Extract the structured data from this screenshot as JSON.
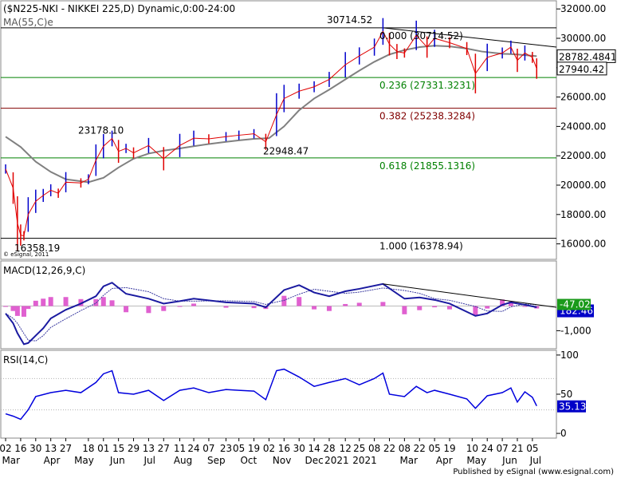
{
  "chart_data": {
    "type": "candlestick",
    "title": "($N225-NKI - NIKKEI 225,D) Dynamic,0:00-24:00",
    "ma_label": "MA(55,C)",
    "ma_label_suffix": "e",
    "watermark": "© eSignal, 2011",
    "price_axis": {
      "ylim": [
        15000,
        32500
      ],
      "ticks": [
        16000,
        18000,
        20000,
        22000,
        24000,
        26000,
        28000,
        30000,
        32000
      ],
      "tick_labels": [
        "16000.00",
        "18000.00",
        "20000.00",
        "22000.00",
        "24000.00",
        "26000.00",
        "28000.00",
        "30000.00",
        "32000.00"
      ],
      "last_price": 27940.42,
      "last_price_label": "27940.42",
      "ma_value": 28782.4841,
      "ma_value_label": "28782.4841"
    },
    "fib_levels": [
      {
        "ratio_label": "0.000 (30714.52)",
        "value": 30714.52,
        "color": "#000000"
      },
      {
        "ratio_label": "0.236 (27331.3231)",
        "value": 27331.3231,
        "color": "#008000"
      },
      {
        "ratio_label": "0.382 (25238.3284)",
        "value": 25238.3284,
        "color": "#800000"
      },
      {
        "ratio_label": "0.618 (21855.1316)",
        "value": 21855.1316,
        "color": "#008000"
      },
      {
        "ratio_label": "1.000 (16378.94)",
        "value": 16378.94,
        "color": "#000000"
      }
    ],
    "annotations": [
      {
        "text": "30714.52",
        "value": 30714.52
      },
      {
        "text": "23178.10",
        "value": 23178.1
      },
      {
        "text": "22948.47",
        "value": 22948.47
      },
      {
        "text": "16358.19",
        "value": 16358.19
      }
    ],
    "price_series": [
      {
        "date": "2020-03-02",
        "close": 21100
      },
      {
        "date": "2020-03-09",
        "close": 19800
      },
      {
        "date": "2020-03-13",
        "close": 17400
      },
      {
        "date": "2020-03-16",
        "close": 16600
      },
      {
        "date": "2020-03-19",
        "close": 16550
      },
      {
        "date": "2020-03-23",
        "close": 18000
      },
      {
        "date": "2020-03-30",
        "close": 18900
      },
      {
        "date": "2020-04-06",
        "close": 19300
      },
      {
        "date": "2020-04-13",
        "close": 19650
      },
      {
        "date": "2020-04-20",
        "close": 19450
      },
      {
        "date": "2020-04-27",
        "close": 20200
      },
      {
        "date": "2020-05-11",
        "close": 20150
      },
      {
        "date": "2020-05-18",
        "close": 20400
      },
      {
        "date": "2020-05-25",
        "close": 21700
      },
      {
        "date": "2020-06-01",
        "close": 22650
      },
      {
        "date": "2020-06-09",
        "close": 23178
      },
      {
        "date": "2020-06-15",
        "close": 22300
      },
      {
        "date": "2020-06-22",
        "close": 22500
      },
      {
        "date": "2020-06-29",
        "close": 22200
      },
      {
        "date": "2020-07-13",
        "close": 22700
      },
      {
        "date": "2020-07-27",
        "close": 21800
      },
      {
        "date": "2020-08-11",
        "close": 22700
      },
      {
        "date": "2020-08-24",
        "close": 23200
      },
      {
        "date": "2020-09-07",
        "close": 23150
      },
      {
        "date": "2020-09-23",
        "close": 23300
      },
      {
        "date": "2020-10-05",
        "close": 23400
      },
      {
        "date": "2020-10-19",
        "close": 23500
      },
      {
        "date": "2020-10-30",
        "close": 22948
      },
      {
        "date": "2020-11-09",
        "close": 24800
      },
      {
        "date": "2020-11-16",
        "close": 25900
      },
      {
        "date": "2020-11-30",
        "close": 26400
      },
      {
        "date": "2020-12-14",
        "close": 26700
      },
      {
        "date": "2020-12-28",
        "close": 27200
      },
      {
        "date": "2021-01-12",
        "close": 28200
      },
      {
        "date": "2021-01-25",
        "close": 28800
      },
      {
        "date": "2021-02-08",
        "close": 29400
      },
      {
        "date": "2021-02-16",
        "close": 30467
      },
      {
        "date": "2021-02-22",
        "close": 29600
      },
      {
        "date": "2021-03-01",
        "close": 29100
      },
      {
        "date": "2021-03-08",
        "close": 29000
      },
      {
        "date": "2021-03-19",
        "close": 30200
      },
      {
        "date": "2021-03-29",
        "close": 29400
      },
      {
        "date": "2021-04-05",
        "close": 30000
      },
      {
        "date": "2021-04-19",
        "close": 29700
      },
      {
        "date": "2021-05-05",
        "close": 29300
      },
      {
        "date": "2021-05-13",
        "close": 27600
      },
      {
        "date": "2021-05-24",
        "close": 28700
      },
      {
        "date": "2021-06-07",
        "close": 29000
      },
      {
        "date": "2021-06-15",
        "close": 29400
      },
      {
        "date": "2021-06-21",
        "close": 28500
      },
      {
        "date": "2021-06-28",
        "close": 29000
      },
      {
        "date": "2021-07-05",
        "close": 28700
      },
      {
        "date": "2021-07-09",
        "close": 27940
      }
    ],
    "ma_series": [
      {
        "date": "2020-03-02",
        "value": 23300
      },
      {
        "date": "2020-03-16",
        "value": 22600
      },
      {
        "date": "2020-03-30",
        "value": 21600
      },
      {
        "date": "2020-04-13",
        "value": 20900
      },
      {
        "date": "2020-04-27",
        "value": 20400
      },
      {
        "date": "2020-05-18",
        "value": 20200
      },
      {
        "date": "2020-06-01",
        "value": 20500
      },
      {
        "date": "2020-06-15",
        "value": 21200
      },
      {
        "date": "2020-06-29",
        "value": 21800
      },
      {
        "date": "2020-07-13",
        "value": 22150
      },
      {
        "date": "2020-07-27",
        "value": 22350
      },
      {
        "date": "2020-08-11",
        "value": 22500
      },
      {
        "date": "2020-08-24",
        "value": 22650
      },
      {
        "date": "2020-09-07",
        "value": 22800
      },
      {
        "date": "2020-09-23",
        "value": 22950
      },
      {
        "date": "2020-10-05",
        "value": 23050
      },
      {
        "date": "2020-10-19",
        "value": 23150
      },
      {
        "date": "2020-11-02",
        "value": 23200
      },
      {
        "date": "2020-11-16",
        "value": 24000
      },
      {
        "date": "2020-11-30",
        "value": 25100
      },
      {
        "date": "2020-12-14",
        "value": 25900
      },
      {
        "date": "2020-12-28",
        "value": 26500
      },
      {
        "date": "2021-01-12",
        "value": 27200
      },
      {
        "date": "2021-01-25",
        "value": 27800
      },
      {
        "date": "2021-02-08",
        "value": 28400
      },
      {
        "date": "2021-02-22",
        "value": 28900
      },
      {
        "date": "2021-03-08",
        "value": 29200
      },
      {
        "date": "2021-03-22",
        "value": 29400
      },
      {
        "date": "2021-04-05",
        "value": 29500
      },
      {
        "date": "2021-04-19",
        "value": 29450
      },
      {
        "date": "2021-05-05",
        "value": 29300
      },
      {
        "date": "2021-05-19",
        "value": 29100
      },
      {
        "date": "2021-06-07",
        "value": 28950
      },
      {
        "date": "2021-06-21",
        "value": 28900
      },
      {
        "date": "2021-07-09",
        "value": 28782
      }
    ],
    "price_trendline": {
      "from": {
        "date": "2021-02-16",
        "value": 30714
      },
      "to": {
        "date": "2021-07-09",
        "value": 29400
      }
    },
    "macd": {
      "label": "MACD(12,26,9,C)",
      "ylim": [
        -1700,
        1800
      ],
      "ticks": [
        -1000
      ],
      "tick_labels": [
        "-1,000"
      ],
      "value_label": "-47.02",
      "signal_label": "182.46",
      "macd_series": [
        {
          "date": "2020-03-02",
          "value": -300
        },
        {
          "date": "2020-03-09",
          "value": -700
        },
        {
          "date": "2020-03-13",
          "value": -1100
        },
        {
          "date": "2020-03-19",
          "value": -1550
        },
        {
          "date": "2020-03-23",
          "value": -1500
        },
        {
          "date": "2020-03-30",
          "value": -1200
        },
        {
          "date": "2020-04-06",
          "value": -900
        },
        {
          "date": "2020-04-13",
          "value": -500
        },
        {
          "date": "2020-04-27",
          "value": -150
        },
        {
          "date": "2020-05-11",
          "value": 100
        },
        {
          "date": "2020-05-25",
          "value": 400
        },
        {
          "date": "2020-06-01",
          "value": 800
        },
        {
          "date": "2020-06-09",
          "value": 950
        },
        {
          "date": "2020-06-22",
          "value": 500
        },
        {
          "date": "2020-07-13",
          "value": 300
        },
        {
          "date": "2020-07-27",
          "value": 100
        },
        {
          "date": "2020-08-11",
          "value": 200
        },
        {
          "date": "2020-08-24",
          "value": 300
        },
        {
          "date": "2020-09-23",
          "value": 150
        },
        {
          "date": "2020-10-19",
          "value": 100
        },
        {
          "date": "2020-10-30",
          "value": -50
        },
        {
          "date": "2020-11-16",
          "value": 650
        },
        {
          "date": "2020-11-30",
          "value": 850
        },
        {
          "date": "2020-12-14",
          "value": 550
        },
        {
          "date": "2020-12-28",
          "value": 400
        },
        {
          "date": "2021-01-12",
          "value": 600
        },
        {
          "date": "2021-01-25",
          "value": 700
        },
        {
          "date": "2021-02-16",
          "value": 900
        },
        {
          "date": "2021-03-08",
          "value": 300
        },
        {
          "date": "2021-03-22",
          "value": 350
        },
        {
          "date": "2021-04-05",
          "value": 250
        },
        {
          "date": "2021-04-19",
          "value": 100
        },
        {
          "date": "2021-05-13",
          "value": -400
        },
        {
          "date": "2021-05-24",
          "value": -300
        },
        {
          "date": "2021-06-07",
          "value": 50
        },
        {
          "date": "2021-06-15",
          "value": 150
        },
        {
          "date": "2021-06-28",
          "value": 50
        },
        {
          "date": "2021-07-09",
          "value": -47
        }
      ],
      "trendline": {
        "from": {
          "date": "2021-02-16",
          "value": 900
        },
        "to": {
          "date": "2021-07-09",
          "value": -50
        }
      }
    },
    "rsi": {
      "label": "RSI(14,C)",
      "ylim": [
        -5,
        105
      ],
      "ticks": [
        0,
        50,
        100
      ],
      "tick_labels": [
        "0",
        "50",
        "100"
      ],
      "guide_levels": [
        30,
        70
      ],
      "value_label": "35.13",
      "series": [
        {
          "date": "2020-03-02",
          "value": 25
        },
        {
          "date": "2020-03-09",
          "value": 22
        },
        {
          "date": "2020-03-16",
          "value": 18
        },
        {
          "date": "2020-03-23",
          "value": 30
        },
        {
          "date": "2020-03-30",
          "value": 47
        },
        {
          "date": "2020-04-13",
          "value": 52
        },
        {
          "date": "2020-04-27",
          "value": 55
        },
        {
          "date": "2020-05-11",
          "value": 52
        },
        {
          "date": "2020-05-25",
          "value": 65
        },
        {
          "date": "2020-06-01",
          "value": 76
        },
        {
          "date": "2020-06-09",
          "value": 80
        },
        {
          "date": "2020-06-15",
          "value": 52
        },
        {
          "date": "2020-06-29",
          "value": 50
        },
        {
          "date": "2020-07-13",
          "value": 55
        },
        {
          "date": "2020-07-27",
          "value": 42
        },
        {
          "date": "2020-08-11",
          "value": 55
        },
        {
          "date": "2020-08-24",
          "value": 58
        },
        {
          "date": "2020-09-07",
          "value": 52
        },
        {
          "date": "2020-09-23",
          "value": 56
        },
        {
          "date": "2020-10-05",
          "value": 55
        },
        {
          "date": "2020-10-19",
          "value": 54
        },
        {
          "date": "2020-10-30",
          "value": 43
        },
        {
          "date": "2020-11-09",
          "value": 80
        },
        {
          "date": "2020-11-16",
          "value": 82
        },
        {
          "date": "2020-11-30",
          "value": 72
        },
        {
          "date": "2020-12-14",
          "value": 60
        },
        {
          "date": "2020-12-28",
          "value": 65
        },
        {
          "date": "2021-01-12",
          "value": 70
        },
        {
          "date": "2021-01-25",
          "value": 62
        },
        {
          "date": "2021-02-08",
          "value": 70
        },
        {
          "date": "2021-02-16",
          "value": 77
        },
        {
          "date": "2021-02-22",
          "value": 50
        },
        {
          "date": "2021-03-08",
          "value": 47
        },
        {
          "date": "2021-03-19",
          "value": 60
        },
        {
          "date": "2021-03-29",
          "value": 52
        },
        {
          "date": "2021-04-05",
          "value": 55
        },
        {
          "date": "2021-04-19",
          "value": 50
        },
        {
          "date": "2021-05-05",
          "value": 44
        },
        {
          "date": "2021-05-13",
          "value": 32
        },
        {
          "date": "2021-05-24",
          "value": 48
        },
        {
          "date": "2021-06-07",
          "value": 52
        },
        {
          "date": "2021-06-15",
          "value": 58
        },
        {
          "date": "2021-06-21",
          "value": 40
        },
        {
          "date": "2021-06-28",
          "value": 53
        },
        {
          "date": "2021-07-05",
          "value": 46
        },
        {
          "date": "2021-07-09",
          "value": 35
        }
      ]
    },
    "x_axis": {
      "start": "2020-02-28",
      "end": "2021-07-14",
      "day_ticks": [
        {
          "date": "2020-03-02",
          "label": "02"
        },
        {
          "date": "2020-03-16",
          "label": "16"
        },
        {
          "date": "2020-03-30",
          "label": "30"
        },
        {
          "date": "2020-04-13",
          "label": "13"
        },
        {
          "date": "2020-04-27",
          "label": "27"
        },
        {
          "date": "2020-05-18",
          "label": "18"
        },
        {
          "date": "2020-06-01",
          "label": "01"
        },
        {
          "date": "2020-06-15",
          "label": "15"
        },
        {
          "date": "2020-06-29",
          "label": "29"
        },
        {
          "date": "2020-07-13",
          "label": "13"
        },
        {
          "date": "2020-07-27",
          "label": "27"
        },
        {
          "date": "2020-08-11",
          "label": "11"
        },
        {
          "date": "2020-08-24",
          "label": "24"
        },
        {
          "date": "2020-09-07",
          "label": "07"
        },
        {
          "date": "2020-09-23",
          "label": "23"
        },
        {
          "date": "2020-10-05",
          "label": "05"
        },
        {
          "date": "2020-10-19",
          "label": "19"
        },
        {
          "date": "2020-11-02",
          "label": "02"
        },
        {
          "date": "2020-11-16",
          "label": "16"
        },
        {
          "date": "2020-11-30",
          "label": "30"
        },
        {
          "date": "2020-12-14",
          "label": "14"
        },
        {
          "date": "2020-12-28",
          "label": "28"
        },
        {
          "date": "2021-01-12",
          "label": "12"
        },
        {
          "date": "2021-01-25",
          "label": "25"
        },
        {
          "date": "2021-02-08",
          "label": "08"
        },
        {
          "date": "2021-02-22",
          "label": "22"
        },
        {
          "date": "2021-03-08",
          "label": "08"
        },
        {
          "date": "2021-03-22",
          "label": "22"
        },
        {
          "date": "2021-04-05",
          "label": "05"
        },
        {
          "date": "2021-04-19",
          "label": "19"
        },
        {
          "date": "2021-05-10",
          "label": "10"
        },
        {
          "date": "2021-05-24",
          "label": "24"
        },
        {
          "date": "2021-06-07",
          "label": "07"
        },
        {
          "date": "2021-06-21",
          "label": "21"
        },
        {
          "date": "2021-07-05",
          "label": "05"
        }
      ],
      "month_labels": [
        {
          "date": "2020-03-07",
          "label": "Mar"
        },
        {
          "date": "2020-04-14",
          "label": "Apr"
        },
        {
          "date": "2020-05-14",
          "label": "May"
        },
        {
          "date": "2020-06-14",
          "label": "Jun"
        },
        {
          "date": "2020-07-14",
          "label": "Jul"
        },
        {
          "date": "2020-08-14",
          "label": "Aug"
        },
        {
          "date": "2020-09-14",
          "label": "Sep"
        },
        {
          "date": "2020-10-14",
          "label": "Oct"
        },
        {
          "date": "2020-11-14",
          "label": "Nov"
        },
        {
          "date": "2020-12-14",
          "label": "Dec"
        },
        {
          "date": "2021-01-04",
          "label": "2021"
        },
        {
          "date": "2021-01-30",
          "label": "2021"
        },
        {
          "date": "2021-03-12",
          "label": "Mar"
        },
        {
          "date": "2021-04-14",
          "label": "Apr"
        },
        {
          "date": "2021-05-14",
          "label": "May"
        },
        {
          "date": "2021-06-14",
          "label": "Jun"
        },
        {
          "date": "2021-07-08",
          "label": "Jul"
        }
      ]
    },
    "credit": "Published by eSignal (www.esignal.com)",
    "colors": {
      "price": "#e00000",
      "price_alt": "#0000cc",
      "ma": "#808080",
      "macd": "#1a1aa0",
      "macd_signal": "#3a3aa0",
      "macd_hist": "#e060d0",
      "rsi": "#0000dd",
      "value_box": "#0000c8",
      "grid_guide": "#b0b0b0"
    }
  }
}
